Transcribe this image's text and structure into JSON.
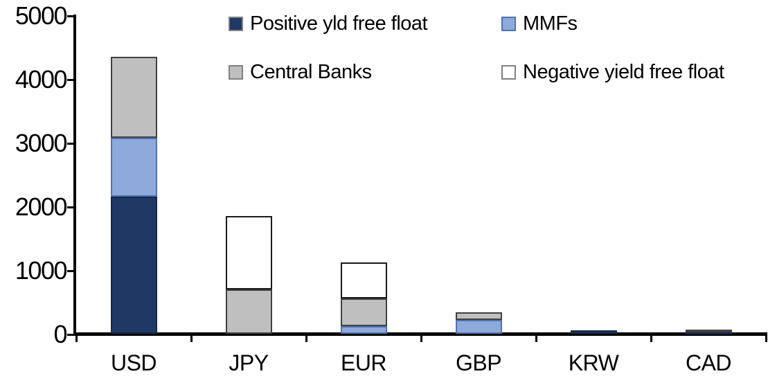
{
  "chart_data": {
    "type": "bar",
    "stacked": true,
    "title": "",
    "xlabel": "",
    "ylabel": "",
    "categories": [
      "USD",
      "JPY",
      "EUR",
      "GBP",
      "KRW",
      "CAD"
    ],
    "series": [
      {
        "name": "Positive yld free float",
        "color": "#1F3864",
        "border": "#16284A",
        "swatch_border": "#808080",
        "values": [
          2150,
          0,
          0,
          0,
          50,
          35
        ]
      },
      {
        "name": "MMFs",
        "color": "#8EA9DB",
        "border": "#4F74AE",
        "swatch_border": "#4F74AE",
        "values": [
          930,
          0,
          120,
          220,
          0,
          0
        ]
      },
      {
        "name": "Central Banks",
        "color": "#BFBFBF",
        "border": "#404040",
        "swatch_border": "#808080",
        "values": [
          1270,
          700,
          430,
          120,
          0,
          35
        ]
      },
      {
        "name": "Negative yield free float",
        "color": "#FFFFFF",
        "border": "#1A1A1A",
        "swatch_border": "#808080",
        "values": [
          0,
          1150,
          570,
          0,
          0,
          0
        ]
      }
    ],
    "ylim": [
      0,
      5000
    ],
    "ytick_step": 1000,
    "yticks": [
      0,
      1000,
      2000,
      3000,
      4000,
      5000
    ],
    "grid": false,
    "legend_position": "top",
    "legend_rows": 2,
    "legend_cols": 2,
    "axis_color": "#000000",
    "background_color": "#FFFFFF"
  }
}
